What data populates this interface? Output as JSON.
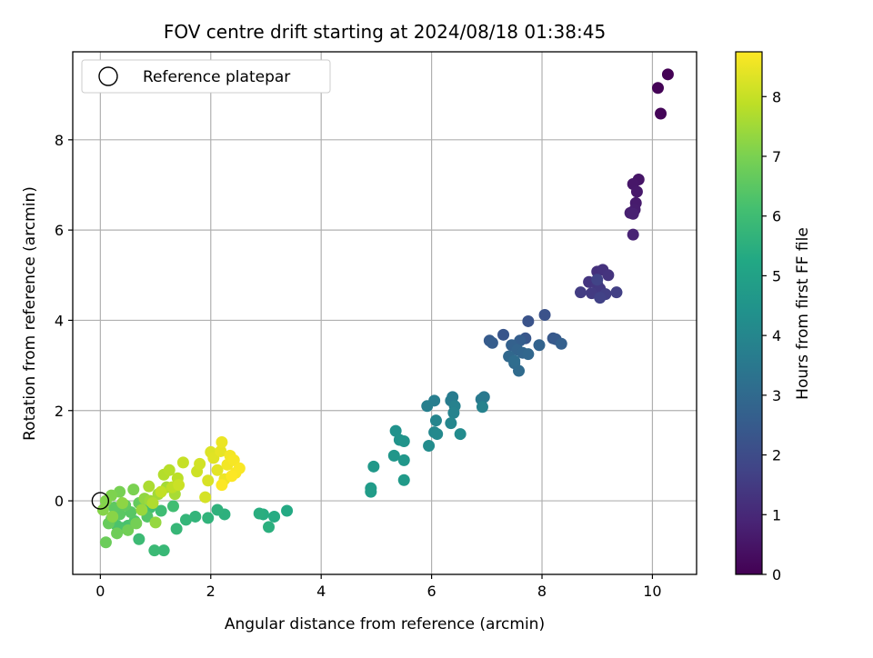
{
  "chart_data": {
    "type": "scatter",
    "title": "FOV centre drift starting at 2024/08/18 01:38:45",
    "xlabel": "Angular distance from reference (arcmin)",
    "ylabel": "Rotation from reference (arcmin)",
    "xlim": [
      -0.5,
      10.8
    ],
    "ylim": [
      -1.63,
      9.95
    ],
    "xticks": [
      0,
      2,
      4,
      6,
      8,
      10
    ],
    "yticks": [
      0,
      2,
      4,
      6,
      8
    ],
    "grid": true,
    "legend": {
      "position": "top-left",
      "entries": [
        "Reference platepar"
      ]
    },
    "reference_point": {
      "x": 0,
      "y": 0,
      "marker": "open-circle"
    },
    "colorbar": {
      "label": "Hours from first FF file",
      "range": [
        0,
        8.75
      ],
      "ticks": [
        0,
        1,
        2,
        3,
        4,
        5,
        6,
        7,
        8
      ],
      "colormap": "viridis"
    },
    "points": [
      {
        "x": 10.28,
        "y": 9.45,
        "c": 0.02
      },
      {
        "x": 10.1,
        "y": 9.15,
        "c": 0.05
      },
      {
        "x": 10.15,
        "y": 8.58,
        "c": 0.1
      },
      {
        "x": 9.75,
        "y": 7.12,
        "c": 0.5
      },
      {
        "x": 9.65,
        "y": 7.02,
        "c": 0.55
      },
      {
        "x": 9.72,
        "y": 6.85,
        "c": 0.6
      },
      {
        "x": 9.7,
        "y": 6.6,
        "c": 0.65
      },
      {
        "x": 9.68,
        "y": 6.45,
        "c": 0.7
      },
      {
        "x": 9.6,
        "y": 6.38,
        "c": 0.75
      },
      {
        "x": 9.65,
        "y": 6.36,
        "c": 0.8
      },
      {
        "x": 9.65,
        "y": 5.9,
        "c": 0.85
      },
      {
        "x": 9.0,
        "y": 5.08,
        "c": 1.2
      },
      {
        "x": 9.1,
        "y": 5.12,
        "c": 1.25
      },
      {
        "x": 9.2,
        "y": 5.0,
        "c": 1.3
      },
      {
        "x": 8.85,
        "y": 4.85,
        "c": 1.35
      },
      {
        "x": 9.0,
        "y": 4.8,
        "c": 1.4
      },
      {
        "x": 9.05,
        "y": 4.7,
        "c": 1.45
      },
      {
        "x": 8.9,
        "y": 4.6,
        "c": 1.5
      },
      {
        "x": 8.7,
        "y": 4.62,
        "c": 1.55
      },
      {
        "x": 9.15,
        "y": 4.58,
        "c": 1.6
      },
      {
        "x": 9.35,
        "y": 4.62,
        "c": 1.65
      },
      {
        "x": 9.05,
        "y": 4.5,
        "c": 1.7
      },
      {
        "x": 9.0,
        "y": 4.9,
        "c": 1.75
      },
      {
        "x": 8.05,
        "y": 4.12,
        "c": 2.2
      },
      {
        "x": 7.75,
        "y": 3.98,
        "c": 2.25
      },
      {
        "x": 7.3,
        "y": 3.68,
        "c": 2.3
      },
      {
        "x": 7.7,
        "y": 3.6,
        "c": 2.35
      },
      {
        "x": 8.2,
        "y": 3.6,
        "c": 2.4
      },
      {
        "x": 8.25,
        "y": 3.58,
        "c": 2.45
      },
      {
        "x": 7.05,
        "y": 3.55,
        "c": 2.5
      },
      {
        "x": 7.1,
        "y": 3.5,
        "c": 2.55
      },
      {
        "x": 7.6,
        "y": 3.55,
        "c": 2.6
      },
      {
        "x": 8.35,
        "y": 3.48,
        "c": 2.65
      },
      {
        "x": 7.45,
        "y": 3.45,
        "c": 2.7
      },
      {
        "x": 7.95,
        "y": 3.45,
        "c": 2.75
      },
      {
        "x": 7.55,
        "y": 3.35,
        "c": 2.8
      },
      {
        "x": 7.65,
        "y": 3.28,
        "c": 2.85
      },
      {
        "x": 7.75,
        "y": 3.25,
        "c": 2.9
      },
      {
        "x": 7.4,
        "y": 3.2,
        "c": 2.95
      },
      {
        "x": 7.5,
        "y": 3.05,
        "c": 3.0
      },
      {
        "x": 7.58,
        "y": 2.88,
        "c": 3.05
      },
      {
        "x": 7.5,
        "y": 3.1,
        "c": 3.1
      },
      {
        "x": 6.95,
        "y": 2.3,
        "c": 3.5
      },
      {
        "x": 6.9,
        "y": 2.25,
        "c": 3.55
      },
      {
        "x": 6.38,
        "y": 2.3,
        "c": 3.6
      },
      {
        "x": 6.35,
        "y": 2.22,
        "c": 3.65
      },
      {
        "x": 6.05,
        "y": 2.22,
        "c": 3.7
      },
      {
        "x": 5.92,
        "y": 2.1,
        "c": 3.75
      },
      {
        "x": 6.42,
        "y": 2.1,
        "c": 3.8
      },
      {
        "x": 6.92,
        "y": 2.08,
        "c": 3.85
      },
      {
        "x": 6.4,
        "y": 1.95,
        "c": 3.9
      },
      {
        "x": 6.08,
        "y": 1.78,
        "c": 3.95
      },
      {
        "x": 6.35,
        "y": 1.72,
        "c": 4.0
      },
      {
        "x": 6.05,
        "y": 1.52,
        "c": 4.05
      },
      {
        "x": 6.1,
        "y": 1.48,
        "c": 4.1
      },
      {
        "x": 6.52,
        "y": 1.48,
        "c": 4.15
      },
      {
        "x": 5.95,
        "y": 1.22,
        "c": 4.2
      },
      {
        "x": 5.35,
        "y": 1.55,
        "c": 4.4
      },
      {
        "x": 5.42,
        "y": 1.35,
        "c": 4.45
      },
      {
        "x": 5.5,
        "y": 1.32,
        "c": 4.5
      },
      {
        "x": 5.32,
        "y": 1.0,
        "c": 4.55
      },
      {
        "x": 5.5,
        "y": 0.9,
        "c": 4.6
      },
      {
        "x": 4.95,
        "y": 0.76,
        "c": 4.65
      },
      {
        "x": 5.5,
        "y": 0.46,
        "c": 4.7
      },
      {
        "x": 4.9,
        "y": 0.28,
        "c": 4.75
      },
      {
        "x": 4.9,
        "y": 0.2,
        "c": 4.8
      },
      {
        "x": 3.38,
        "y": -0.22,
        "c": 5.3
      },
      {
        "x": 3.15,
        "y": -0.35,
        "c": 5.35
      },
      {
        "x": 2.95,
        "y": -0.3,
        "c": 5.4
      },
      {
        "x": 2.88,
        "y": -0.28,
        "c": 5.45
      },
      {
        "x": 3.05,
        "y": -0.58,
        "c": 5.5
      },
      {
        "x": 2.25,
        "y": -0.3,
        "c": 5.55
      },
      {
        "x": 2.12,
        "y": -0.2,
        "c": 5.6
      },
      {
        "x": 1.95,
        "y": -0.38,
        "c": 5.65
      },
      {
        "x": 1.72,
        "y": -0.35,
        "c": 5.7
      },
      {
        "x": 1.55,
        "y": -0.42,
        "c": 5.75
      },
      {
        "x": 1.38,
        "y": -0.62,
        "c": 5.8
      },
      {
        "x": 1.15,
        "y": -1.1,
        "c": 5.85
      },
      {
        "x": 0.98,
        "y": -1.1,
        "c": 5.9
      },
      {
        "x": 0.7,
        "y": -0.85,
        "c": 5.95
      },
      {
        "x": 1.1,
        "y": -0.22,
        "c": 6.0
      },
      {
        "x": 1.32,
        "y": -0.12,
        "c": 6.05
      },
      {
        "x": 0.9,
        "y": -0.15,
        "c": 6.1
      },
      {
        "x": 0.4,
        "y": -0.6,
        "c": 6.15
      },
      {
        "x": 0.5,
        "y": -0.55,
        "c": 6.2
      },
      {
        "x": 0.3,
        "y": -0.55,
        "c": 6.25
      },
      {
        "x": 0.62,
        "y": -0.45,
        "c": 6.3
      },
      {
        "x": 0.85,
        "y": -0.35,
        "c": 6.35
      },
      {
        "x": 0.2,
        "y": -0.4,
        "c": 6.4
      },
      {
        "x": 0.55,
        "y": -0.25,
        "c": 6.45
      },
      {
        "x": 0.35,
        "y": -0.3,
        "c": 6.5
      },
      {
        "x": 0.25,
        "y": -0.15,
        "c": 6.55
      },
      {
        "x": 0.45,
        "y": -0.1,
        "c": 6.6
      },
      {
        "x": 0.7,
        "y": -0.05,
        "c": 6.65
      },
      {
        "x": 0.15,
        "y": -0.5,
        "c": 6.7
      },
      {
        "x": 0.1,
        "y": -0.92,
        "c": 6.75
      },
      {
        "x": 0.3,
        "y": -0.72,
        "c": 6.8
      },
      {
        "x": 0.5,
        "y": -0.65,
        "c": 6.85
      },
      {
        "x": 0.65,
        "y": -0.5,
        "c": 6.9
      },
      {
        "x": 0.35,
        "y": 0.2,
        "c": 6.95
      },
      {
        "x": 0.6,
        "y": 0.25,
        "c": 7.0
      },
      {
        "x": 0.2,
        "y": 0.12,
        "c": 7.05
      },
      {
        "x": 0.1,
        "y": 0.0,
        "c": 7.1
      },
      {
        "x": 0.05,
        "y": -0.2,
        "c": 7.15
      },
      {
        "x": 0.22,
        "y": -0.35,
        "c": 7.2
      },
      {
        "x": 0.4,
        "y": -0.05,
        "c": 7.25
      },
      {
        "x": 0.8,
        "y": 0.05,
        "c": 7.3
      },
      {
        "x": 1.0,
        "y": -0.48,
        "c": 7.35
      },
      {
        "x": 0.75,
        "y": -0.2,
        "c": 7.4
      },
      {
        "x": 0.9,
        "y": 0.0,
        "c": 7.45
      },
      {
        "x": 1.05,
        "y": 0.15,
        "c": 7.5
      },
      {
        "x": 1.2,
        "y": 0.3,
        "c": 7.55
      },
      {
        "x": 1.35,
        "y": 0.15,
        "c": 7.6
      },
      {
        "x": 0.88,
        "y": 0.32,
        "c": 7.65
      },
      {
        "x": 0.95,
        "y": -0.05,
        "c": 7.7
      },
      {
        "x": 1.15,
        "y": 0.58,
        "c": 7.75
      },
      {
        "x": 1.25,
        "y": 0.68,
        "c": 7.8
      },
      {
        "x": 1.4,
        "y": 0.5,
        "c": 7.85
      },
      {
        "x": 1.3,
        "y": 0.3,
        "c": 7.9
      },
      {
        "x": 1.1,
        "y": 0.2,
        "c": 7.95
      },
      {
        "x": 1.5,
        "y": 0.85,
        "c": 8.0
      },
      {
        "x": 1.42,
        "y": 0.35,
        "c": 8.05
      },
      {
        "x": 1.75,
        "y": 0.65,
        "c": 8.1
      },
      {
        "x": 1.8,
        "y": 0.82,
        "c": 8.15
      },
      {
        "x": 1.9,
        "y": 0.08,
        "c": 8.2
      },
      {
        "x": 1.95,
        "y": 0.45,
        "c": 8.25
      },
      {
        "x": 2.0,
        "y": 1.08,
        "c": 8.3
      },
      {
        "x": 2.05,
        "y": 0.95,
        "c": 8.35
      },
      {
        "x": 2.12,
        "y": 0.68,
        "c": 8.4
      },
      {
        "x": 2.18,
        "y": 1.1,
        "c": 8.45
      },
      {
        "x": 2.2,
        "y": 1.3,
        "c": 8.5
      },
      {
        "x": 2.25,
        "y": 0.48,
        "c": 8.55
      },
      {
        "x": 2.3,
        "y": 0.8,
        "c": 8.6
      },
      {
        "x": 2.35,
        "y": 1.0,
        "c": 8.62
      },
      {
        "x": 2.42,
        "y": 0.9,
        "c": 8.65
      },
      {
        "x": 2.45,
        "y": 0.62,
        "c": 8.68
      },
      {
        "x": 2.52,
        "y": 0.72,
        "c": 8.7
      },
      {
        "x": 2.2,
        "y": 0.35,
        "c": 8.72
      },
      {
        "x": 2.38,
        "y": 0.55,
        "c": 8.74
      }
    ]
  }
}
